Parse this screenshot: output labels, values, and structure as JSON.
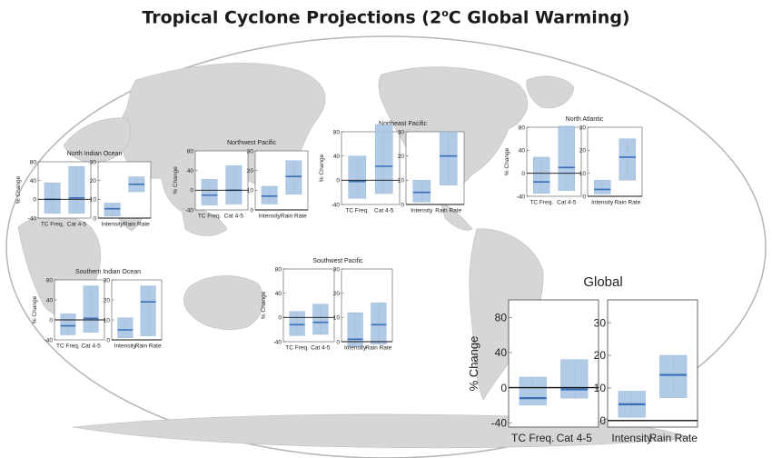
{
  "title": {
    "prefix": "Tropical Cyclone Projections (2",
    "superscript": "o",
    "suffix": "C Global Warming)"
  },
  "colors": {
    "box_fill": "#a9c4e3",
    "median_line": "#3a6fb8",
    "whisker": "#7f7f7f",
    "ocean": "#ffffff",
    "land": "#d4d4d4",
    "globe_edge": "#b5b5b5"
  },
  "chart_data": [
    {
      "type": "box",
      "name": "North Indian Ocean",
      "ylabel": "% Change",
      "left": {
        "ylim": [
          -40,
          80
        ],
        "ticks": [
          -40,
          0,
          40,
          80
        ],
        "categories": [
          "TC Freq.",
          "Cat 4-5"
        ],
        "boxes": [
          {
            "low": -30,
            "high": 35,
            "median": 0
          },
          {
            "low": -30,
            "high": 70,
            "median": 3
          }
        ]
      },
      "right": {
        "ylim": [
          0,
          30
        ],
        "ticks": [
          0,
          10,
          20,
          30
        ],
        "categories": [
          "Intensity",
          "Rain Rate"
        ],
        "boxes": [
          {
            "low": 1,
            "high": 8,
            "median": 5
          },
          {
            "low": 14,
            "high": 22,
            "median": 18
          }
        ]
      }
    },
    {
      "type": "box",
      "name": "Northwest Pacific",
      "ylabel": "% Change",
      "left": {
        "ylim": [
          -40,
          80
        ],
        "ticks": [
          -40,
          0,
          40,
          80
        ],
        "categories": [
          "TC Freq.",
          "Cat 4-5"
        ],
        "boxes": [
          {
            "low": -30,
            "high": 22,
            "median": -10
          },
          {
            "low": -28,
            "high": 50,
            "median": 0
          }
        ]
      },
      "right": {
        "ylim": [
          0,
          30
        ],
        "ticks": [
          0,
          10,
          20,
          30
        ],
        "categories": [
          "Intensity",
          "Rain Rate"
        ],
        "boxes": [
          {
            "low": 3,
            "high": 12,
            "median": 7
          },
          {
            "low": 8,
            "high": 25,
            "median": 17
          }
        ]
      }
    },
    {
      "type": "box",
      "name": "Northeast Pacific",
      "ylabel": "% Change",
      "left": {
        "ylim": [
          -40,
          80
        ],
        "ticks": [
          -40,
          0,
          40,
          80
        ],
        "categories": [
          "TC Freq.",
          "Cat 4-5"
        ],
        "boxes": [
          {
            "low": -30,
            "high": 40,
            "median": -2
          },
          {
            "low": -22,
            "high": 92,
            "median": 23
          }
        ]
      },
      "right": {
        "ylim": [
          0,
          30
        ],
        "ticks": [
          0,
          10,
          20,
          30
        ],
        "categories": [
          "Intensity",
          "Rain Rate"
        ],
        "boxes": [
          {
            "low": 1,
            "high": 10,
            "median": 5
          },
          {
            "low": 8,
            "high": 30,
            "median": 20
          }
        ]
      }
    },
    {
      "type": "box",
      "name": "North Atlantic",
      "ylabel": "% Change",
      "left": {
        "ylim": [
          -40,
          80
        ],
        "ticks": [
          -40,
          0,
          40,
          80
        ],
        "categories": [
          "TC Freq.",
          "Cat 4-5"
        ],
        "boxes": [
          {
            "low": -35,
            "high": 28,
            "median": -15
          },
          {
            "low": -30,
            "high": 82,
            "median": 10
          }
        ]
      },
      "right": {
        "ylim": [
          0,
          30
        ],
        "ticks": [
          0,
          10,
          20,
          30
        ],
        "categories": [
          "Intensity",
          "Rain Rate"
        ],
        "boxes": [
          {
            "low": 1,
            "high": 7,
            "median": 3
          },
          {
            "low": 7,
            "high": 25,
            "median": 17
          }
        ]
      }
    },
    {
      "type": "box",
      "name": "Southern Indian Ocean",
      "ylabel": "% Change",
      "left": {
        "ylim": [
          -40,
          80
        ],
        "ticks": [
          -40,
          0,
          40,
          80
        ],
        "categories": [
          "TC Freq.",
          "Cat 4-5"
        ],
        "boxes": [
          {
            "low": -30,
            "high": 12,
            "median": -12
          },
          {
            "low": -25,
            "high": 68,
            "median": 3
          }
        ]
      },
      "right": {
        "ylim": [
          0,
          30
        ],
        "ticks": [
          0,
          10,
          20,
          30
        ],
        "categories": [
          "Intensity",
          "Rain Rate"
        ],
        "boxes": [
          {
            "low": 1,
            "high": 11,
            "median": 5
          },
          {
            "low": 2,
            "high": 27,
            "median": 19
          }
        ]
      }
    },
    {
      "type": "box",
      "name": "Southwest Pacific",
      "ylabel": "% Change",
      "left": {
        "ylim": [
          -40,
          80
        ],
        "ticks": [
          -40,
          0,
          40,
          80
        ],
        "categories": [
          "TC Freq.",
          "Cat 4-5"
        ],
        "boxes": [
          {
            "low": -30,
            "high": 10,
            "median": -12
          },
          {
            "low": -28,
            "high": 22,
            "median": -8
          }
        ]
      },
      "right": {
        "ylim": [
          0,
          30
        ],
        "ticks": [
          0,
          10,
          20,
          30
        ],
        "categories": [
          "Intensity",
          "Rain Rate"
        ],
        "boxes": [
          {
            "low": -2,
            "high": 12,
            "median": 1
          },
          {
            "low": -1,
            "high": 16,
            "median": 7
          }
        ]
      }
    },
    {
      "type": "box",
      "name": "Global",
      "ylabel": "% Change",
      "large": true,
      "left": {
        "ylim": [
          -45,
          100
        ],
        "ticks": [
          -40,
          0,
          40,
          80
        ],
        "categories": [
          "TC Freq.",
          "Cat 4-5"
        ],
        "boxes": [
          {
            "low": -20,
            "high": 12,
            "median": -12
          },
          {
            "low": -12,
            "high": 32,
            "median": -2
          }
        ]
      },
      "right": {
        "ylim": [
          -2,
          37
        ],
        "ticks": [
          0,
          10,
          20,
          30
        ],
        "categories": [
          "Intensity",
          "Rain Rate"
        ],
        "boxes": [
          {
            "low": 1,
            "high": 9,
            "median": 5
          },
          {
            "low": 7,
            "high": 20,
            "median": 14
          }
        ]
      }
    }
  ]
}
